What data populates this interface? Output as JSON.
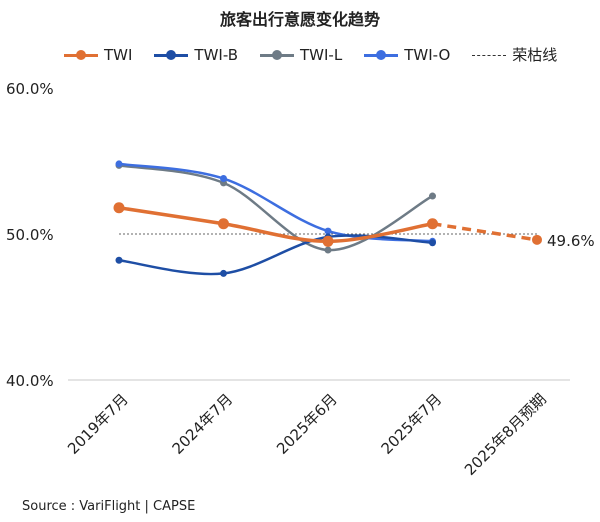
{
  "chart_data": {
    "type": "line",
    "title": "旅客出行意愿变化趋势",
    "categories": [
      "2019年7月",
      "2024年7月",
      "2025年6月",
      "2025年7月",
      "2025年8月预期"
    ],
    "ylim": [
      40,
      60
    ],
    "yticks": [
      "40.0%",
      "50.0%",
      "60.0%"
    ],
    "ytick_values": [
      40,
      50,
      60
    ],
    "grid": false,
    "legend_position": "top",
    "series": [
      {
        "name": "TWI",
        "color": "#E07033",
        "values": [
          51.8,
          50.7,
          49.5,
          50.7,
          null
        ],
        "forecast": [
          null,
          null,
          null,
          50.7,
          49.6
        ],
        "forecast_label": "49.6%",
        "marker_size": "large"
      },
      {
        "name": "TWI-B",
        "color": "#1E4EA5",
        "values": [
          48.2,
          47.3,
          49.8,
          49.4,
          null
        ]
      },
      {
        "name": "TWI-L",
        "color": "#6E7B86",
        "values": [
          54.7,
          53.5,
          48.9,
          52.6,
          null
        ]
      },
      {
        "name": "TWI-O",
        "color": "#3D6EE0",
        "values": [
          54.8,
          53.8,
          50.2,
          49.5,
          null
        ]
      }
    ],
    "reference_line": {
      "name": "荣枯线",
      "value": 50,
      "color": "#333333"
    }
  },
  "footer": {
    "source": "Source : VariFlight | CAPSE"
  }
}
